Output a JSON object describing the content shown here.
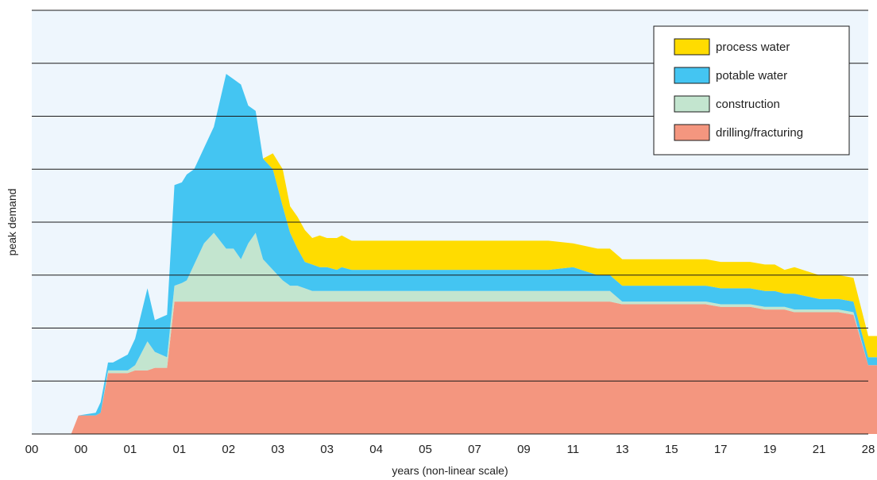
{
  "chart_data": {
    "type": "area",
    "title": "",
    "xlabel": "years (non-linear scale)",
    "ylabel": "peak demand",
    "x_tick_labels": [
      "00",
      "00",
      "01",
      "01",
      "02",
      "03",
      "03",
      "04",
      "05",
      "07",
      "09",
      "11",
      "13",
      "15",
      "17",
      "19",
      "21",
      "28"
    ],
    "ylim": [
      0,
      8
    ],
    "y_gridlines": 8,
    "y_ticks_labeled": false,
    "grid": true,
    "legend_position": "top-right",
    "stacked": true,
    "colors": {
      "background": "#eef6fd",
      "gridline": "#1a1a1a",
      "drilling": "#f4967f",
      "construction": "#c3e5cf",
      "potable": "#44c5f2",
      "process": "#ffdc00"
    },
    "legend": [
      {
        "label": "process water",
        "color_key": "process"
      },
      {
        "label": "potable water",
        "color_key": "potable"
      },
      {
        "label": "construction",
        "color_key": "construction"
      },
      {
        "label": "drilling/fracturing",
        "color_key": "drilling"
      }
    ],
    "x": [
      0.8,
      0.95,
      1.3,
      1.4,
      1.55,
      1.65,
      1.95,
      2.1,
      2.35,
      2.5,
      2.75,
      2.9,
      3.05,
      3.15,
      3.3,
      3.5,
      3.7,
      3.95,
      4.1,
      4.25,
      4.4,
      4.55,
      4.7,
      4.9,
      5.1,
      5.25,
      5.4,
      5.55,
      5.7,
      5.85,
      6.0,
      6.2,
      6.3,
      6.5,
      6.7,
      6.9,
      7.2,
      7.4,
      7.7,
      7.9,
      8.2,
      8.5,
      9.0,
      9.5,
      10.0,
      10.5,
      11.0,
      11.5,
      11.75,
      12.0,
      12.3,
      12.5,
      12.8,
      13.2,
      13.7,
      14.0,
      14.3,
      14.6,
      14.9,
      15.1,
      15.3,
      15.5,
      16.0,
      16.4,
      16.7,
      17.0,
      17.3,
      17.6,
      18.0,
      18.4
    ],
    "series": [
      {
        "name": "drilling/fracturing",
        "values": [
          0.0,
          0.35,
          0.35,
          0.4,
          1.15,
          1.15,
          1.15,
          1.2,
          1.2,
          1.25,
          1.25,
          2.5,
          2.5,
          2.5,
          2.5,
          2.5,
          2.5,
          2.5,
          2.5,
          2.5,
          2.5,
          2.5,
          2.5,
          2.5,
          2.5,
          2.5,
          2.5,
          2.5,
          2.5,
          2.5,
          2.5,
          2.5,
          2.5,
          2.5,
          2.5,
          2.5,
          2.5,
          2.5,
          2.5,
          2.5,
          2.5,
          2.5,
          2.5,
          2.5,
          2.5,
          2.5,
          2.5,
          2.5,
          2.5,
          2.45,
          2.45,
          2.45,
          2.45,
          2.45,
          2.45,
          2.4,
          2.4,
          2.4,
          2.35,
          2.35,
          2.35,
          2.3,
          2.3,
          2.3,
          2.25,
          1.3,
          1.3,
          1.3,
          0.05,
          0.05
        ]
      },
      {
        "name": "construction",
        "values": [
          0.0,
          0.0,
          0.0,
          0.0,
          0.05,
          0.05,
          0.05,
          0.1,
          0.55,
          0.3,
          0.2,
          0.3,
          0.35,
          0.4,
          0.7,
          1.1,
          1.3,
          1.0,
          1.0,
          0.8,
          1.1,
          1.3,
          0.8,
          0.6,
          0.4,
          0.3,
          0.3,
          0.25,
          0.2,
          0.2,
          0.2,
          0.2,
          0.2,
          0.2,
          0.2,
          0.2,
          0.2,
          0.2,
          0.2,
          0.2,
          0.2,
          0.2,
          0.2,
          0.2,
          0.2,
          0.2,
          0.2,
          0.2,
          0.2,
          0.05,
          0.05,
          0.05,
          0.05,
          0.05,
          0.05,
          0.05,
          0.05,
          0.05,
          0.05,
          0.05,
          0.05,
          0.05,
          0.05,
          0.05,
          0.05,
          0.0,
          0.0,
          0.0,
          0.0,
          0.0
        ]
      },
      {
        "name": "potable water",
        "values": [
          0.0,
          0.0,
          0.05,
          0.2,
          0.15,
          0.15,
          0.3,
          0.5,
          1.0,
          0.6,
          0.8,
          1.9,
          1.9,
          2.0,
          1.8,
          1.8,
          2.0,
          3.3,
          3.2,
          3.3,
          2.6,
          2.3,
          1.9,
          1.9,
          1.4,
          1.0,
          0.7,
          0.5,
          0.5,
          0.45,
          0.45,
          0.4,
          0.45,
          0.4,
          0.4,
          0.4,
          0.4,
          0.4,
          0.4,
          0.4,
          0.4,
          0.4,
          0.4,
          0.4,
          0.4,
          0.4,
          0.45,
          0.3,
          0.3,
          0.3,
          0.3,
          0.3,
          0.3,
          0.3,
          0.3,
          0.3,
          0.3,
          0.3,
          0.3,
          0.3,
          0.25,
          0.3,
          0.2,
          0.2,
          0.2,
          0.15,
          0.15,
          0.15,
          0.15,
          0.15
        ]
      },
      {
        "name": "process water",
        "values": [
          0.0,
          0.0,
          0.0,
          0.0,
          0.0,
          0.0,
          0.0,
          0.0,
          0.0,
          0.0,
          0.0,
          0.0,
          0.0,
          0.0,
          0.0,
          0.0,
          0.0,
          0.0,
          0.0,
          0.0,
          0.0,
          0.0,
          0.0,
          0.3,
          0.7,
          0.5,
          0.6,
          0.6,
          0.5,
          0.6,
          0.55,
          0.6,
          0.6,
          0.55,
          0.55,
          0.55,
          0.55,
          0.55,
          0.55,
          0.55,
          0.55,
          0.55,
          0.55,
          0.55,
          0.55,
          0.55,
          0.45,
          0.5,
          0.5,
          0.5,
          0.5,
          0.5,
          0.5,
          0.5,
          0.5,
          0.5,
          0.5,
          0.5,
          0.5,
          0.5,
          0.45,
          0.5,
          0.45,
          0.45,
          0.45,
          0.4,
          0.4,
          0.4,
          0.7,
          0.7
        ]
      }
    ]
  }
}
